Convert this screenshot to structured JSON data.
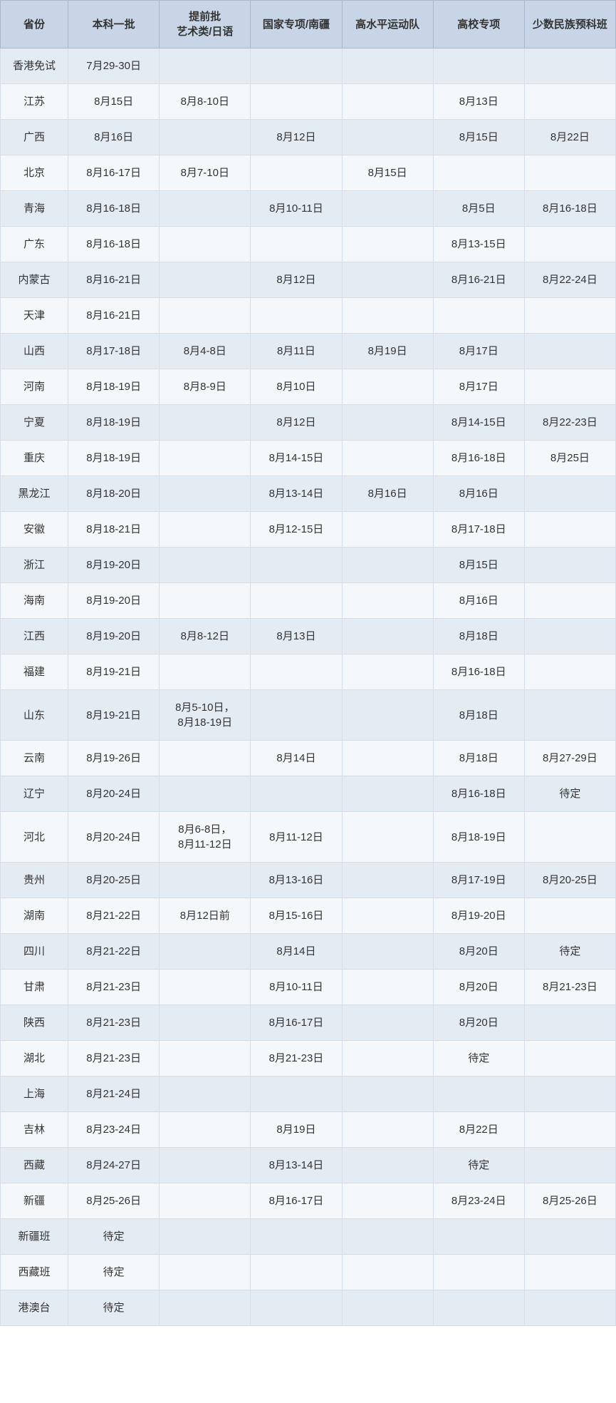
{
  "table": {
    "headers": [
      "省份",
      "本科一批",
      "提前批\n艺术类/日语",
      "国家专项/南疆",
      "高水平运动队",
      "高校专项",
      "少数民族预科班"
    ],
    "rows": [
      [
        "香港免试",
        "7月29-30日",
        "",
        "",
        "",
        "",
        ""
      ],
      [
        "江苏",
        "8月15日",
        "8月8-10日",
        "",
        "",
        "8月13日",
        ""
      ],
      [
        "广西",
        "8月16日",
        "",
        "8月12日",
        "",
        "8月15日",
        "8月22日"
      ],
      [
        "北京",
        "8月16-17日",
        "8月7-10日",
        "",
        "8月15日",
        "",
        ""
      ],
      [
        "青海",
        "8月16-18日",
        "",
        "8月10-11日",
        "",
        "8月5日",
        "8月16-18日"
      ],
      [
        "广东",
        "8月16-18日",
        "",
        "",
        "",
        "8月13-15日",
        ""
      ],
      [
        "内蒙古",
        "8月16-21日",
        "",
        "8月12日",
        "",
        "8月16-21日",
        "8月22-24日"
      ],
      [
        "天津",
        "8月16-21日",
        "",
        "",
        "",
        "",
        ""
      ],
      [
        "山西",
        "8月17-18日",
        "8月4-8日",
        "8月11日",
        "8月19日",
        "8月17日",
        ""
      ],
      [
        "河南",
        "8月18-19日",
        "8月8-9日",
        "8月10日",
        "",
        "8月17日",
        ""
      ],
      [
        "宁夏",
        "8月18-19日",
        "",
        "8月12日",
        "",
        "8月14-15日",
        "8月22-23日"
      ],
      [
        "重庆",
        "8月18-19日",
        "",
        "8月14-15日",
        "",
        "8月16-18日",
        "8月25日"
      ],
      [
        "黑龙江",
        "8月18-20日",
        "",
        "8月13-14日",
        "8月16日",
        "8月16日",
        ""
      ],
      [
        "安徽",
        "8月18-21日",
        "",
        "8月12-15日",
        "",
        "8月17-18日",
        ""
      ],
      [
        "浙江",
        "8月19-20日",
        "",
        "",
        "",
        "8月15日",
        ""
      ],
      [
        "海南",
        "8月19-20日",
        "",
        "",
        "",
        "8月16日",
        ""
      ],
      [
        "江西",
        "8月19-20日",
        "8月8-12日",
        "8月13日",
        "",
        "8月18日",
        ""
      ],
      [
        "福建",
        "8月19-21日",
        "",
        "",
        "",
        "8月16-18日",
        ""
      ],
      [
        "山东",
        "8月19-21日",
        "8月5-10日，\n8月18-19日",
        "",
        "",
        "8月18日",
        ""
      ],
      [
        "云南",
        "8月19-26日",
        "",
        "8月14日",
        "",
        "8月18日",
        "8月27-29日"
      ],
      [
        "辽宁",
        "8月20-24日",
        "",
        "",
        "",
        "8月16-18日",
        "待定"
      ],
      [
        "河北",
        "8月20-24日",
        "8月6-8日，\n8月11-12日",
        "8月11-12日",
        "",
        "8月18-19日",
        ""
      ],
      [
        "贵州",
        "8月20-25日",
        "",
        "8月13-16日",
        "",
        "8月17-19日",
        "8月20-25日"
      ],
      [
        "湖南",
        "8月21-22日",
        "8月12日前",
        "8月15-16日",
        "",
        "8月19-20日",
        ""
      ],
      [
        "四川",
        "8月21-22日",
        "",
        "8月14日",
        "",
        "8月20日",
        "待定"
      ],
      [
        "甘肃",
        "8月21-23日",
        "",
        "8月10-11日",
        "",
        "8月20日",
        "8月21-23日"
      ],
      [
        "陕西",
        "8月21-23日",
        "",
        "8月16-17日",
        "",
        "8月20日",
        ""
      ],
      [
        "湖北",
        "8月21-23日",
        "",
        "8月21-23日",
        "",
        "待定",
        ""
      ],
      [
        "上海",
        "8月21-24日",
        "",
        "",
        "",
        "",
        ""
      ],
      [
        "吉林",
        "8月23-24日",
        "",
        "8月19日",
        "",
        "8月22日",
        ""
      ],
      [
        "西藏",
        "8月24-27日",
        "",
        "8月13-14日",
        "",
        "待定",
        ""
      ],
      [
        "新疆",
        "8月25-26日",
        "",
        "8月16-17日",
        "",
        "8月23-24日",
        "8月25-26日"
      ],
      [
        "新疆班",
        "待定",
        "",
        "",
        "",
        "",
        ""
      ],
      [
        "西藏班",
        "待定",
        "",
        "",
        "",
        "",
        ""
      ],
      [
        "港澳台",
        "待定",
        "",
        "",
        "",
        "",
        ""
      ]
    ],
    "header_bg": "#c7d5e6",
    "odd_row_bg": "#e3ebf3",
    "even_row_bg": "#f5f8fb",
    "text_color": "#333333",
    "border_color": "#d4dde8",
    "font_size": 15
  }
}
